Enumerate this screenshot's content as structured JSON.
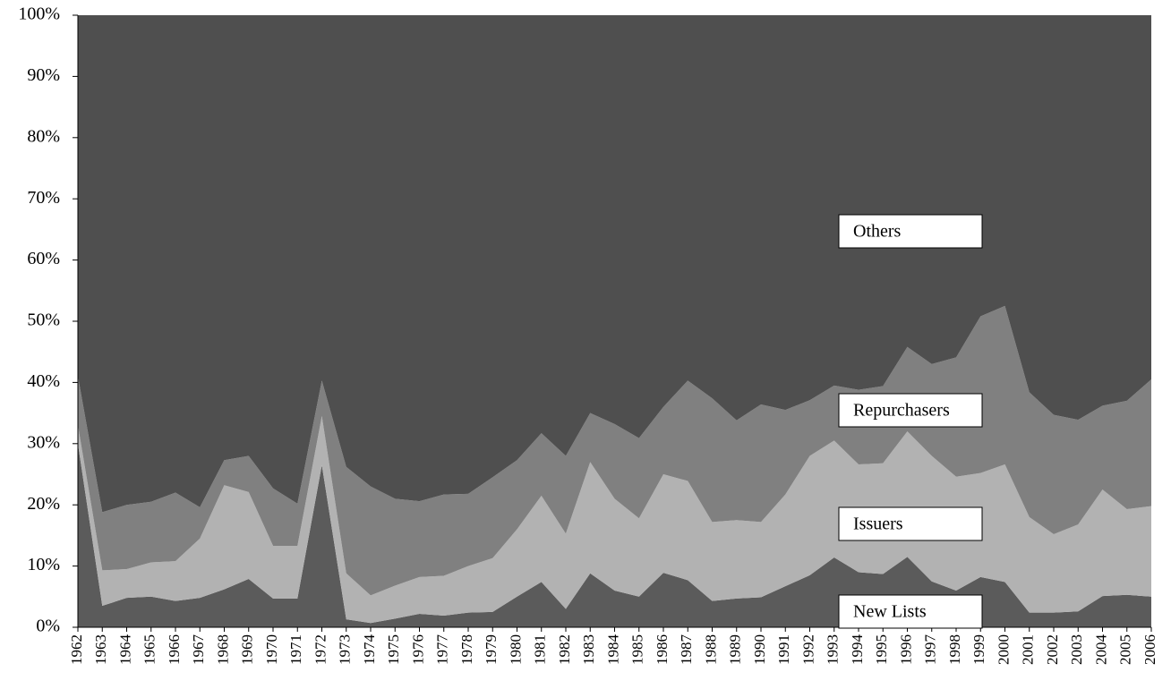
{
  "chart_data": {
    "type": "stacked-area",
    "categories": [
      "1962",
      "1963",
      "1964",
      "1965",
      "1966",
      "1967",
      "1968",
      "1969",
      "1970",
      "1971",
      "1972",
      "1973",
      "1974",
      "1975",
      "1976",
      "1977",
      "1978",
      "1979",
      "1980",
      "1981",
      "1982",
      "1983",
      "1984",
      "1985",
      "1986",
      "1987",
      "1988",
      "1989",
      "1990",
      "1991",
      "1992",
      "1993",
      "1994",
      "1995",
      "1996",
      "1997",
      "1998",
      "1999",
      "2000",
      "2001",
      "2002",
      "2003",
      "2004",
      "2005",
      "2006"
    ],
    "series": [
      {
        "name": "New Lists",
        "color": "#5b5b5b",
        "values": [
          30,
          3.5,
          4.8,
          5,
          4.3,
          4.8,
          6.2,
          7.9,
          4.7,
          4.7,
          26.5,
          1.3,
          0.7,
          1.4,
          2.2,
          1.9,
          2.4,
          2.5,
          5,
          7.4,
          3,
          8.8,
          6,
          5,
          8.9,
          7.7,
          4.3,
          4.7,
          4.9,
          6.7,
          8.5,
          11.4,
          9,
          8.7,
          11.5,
          7.5,
          6,
          8.2,
          7.4,
          2.4,
          2.4,
          2.6,
          5.1,
          5.3,
          5
        ]
      },
      {
        "name": "Issuers",
        "color": "#b2b2b2",
        "values": [
          3,
          5.8,
          4.7,
          5.6,
          6.5,
          9.7,
          17,
          14.2,
          8.6,
          8.6,
          8,
          7.5,
          4.5,
          5.4,
          6,
          6.5,
          7.6,
          8.8,
          11,
          14.1,
          12.3,
          18.2,
          15,
          12.8,
          16.1,
          16.2,
          12.9,
          12.8,
          12.3,
          15,
          19.5,
          19.1,
          17.6,
          18.1,
          20.5,
          20.5,
          18.6,
          17,
          19.2,
          15.6,
          12.8,
          14.2,
          17.4,
          14,
          14.8
        ]
      },
      {
        "name": "Repurchasers",
        "color": "#808080",
        "values": [
          8,
          9.5,
          10.5,
          9.9,
          11.2,
          5.1,
          4.1,
          5.9,
          9.4,
          6.9,
          5.8,
          17.4,
          17.8,
          14.2,
          12.4,
          13.3,
          11.8,
          13.2,
          11.3,
          10.2,
          12.7,
          8,
          12.2,
          13.1,
          11,
          16.4,
          20.2,
          16.3,
          19.2,
          13.8,
          9.1,
          9,
          12.2,
          12.6,
          13.8,
          15,
          19.5,
          25.6,
          25.9,
          20.4,
          19.5,
          17.1,
          13.7,
          17.7,
          20.7
        ]
      },
      {
        "name": "Others",
        "color": "#4f4f4f",
        "values": [
          59,
          81.2,
          80,
          79.5,
          78,
          80.4,
          72.7,
          72,
          77.3,
          79.8,
          59.7,
          73.8,
          77,
          79,
          79.4,
          78.3,
          78.2,
          75.5,
          72.7,
          68.3,
          72,
          65,
          66.8,
          69.1,
          64,
          59.7,
          62.6,
          66.2,
          63.6,
          64.5,
          62.9,
          60.5,
          61.2,
          60.6,
          54.2,
          57,
          55.9,
          49.2,
          47.5,
          61.6,
          65.3,
          66.1,
          63.8,
          63,
          59.5
        ]
      }
    ],
    "ylim": [
      0,
      100
    ],
    "yticks": [
      {
        "value": 0,
        "label": "0%"
      },
      {
        "value": 10,
        "label": "10%"
      },
      {
        "value": 20,
        "label": "20%"
      },
      {
        "value": 30,
        "label": "30%"
      },
      {
        "value": 40,
        "label": "40%"
      },
      {
        "value": 50,
        "label": "50%"
      },
      {
        "value": 60,
        "label": "60%"
      },
      {
        "value": 70,
        "label": "70%"
      },
      {
        "value": 80,
        "label": "80%"
      },
      {
        "value": 90,
        "label": "90%"
      },
      {
        "value": 100,
        "label": "100%"
      }
    ]
  }
}
